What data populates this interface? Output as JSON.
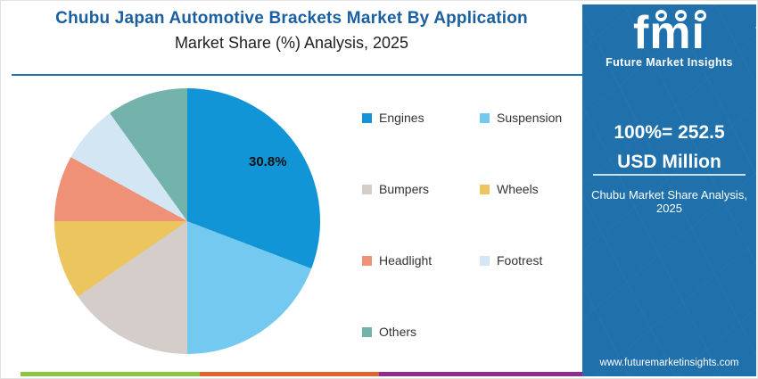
{
  "header": {
    "title": "Chubu Japan Automotive Brackets Market By Application",
    "subtitle": "Market Share (%) Analysis, 2025"
  },
  "chart_data": {
    "type": "pie",
    "title": "Chubu Japan Automotive Brackets Market By Application - Market Share (%) Analysis, 2025",
    "unit": "%",
    "start_angle_deg": 0,
    "direction": "clockwise",
    "legend_position": "right",
    "segments": [
      {
        "label": "Engines",
        "value": 30.8,
        "color": "#1195d6"
      },
      {
        "label": "Suspension",
        "value": 19.2,
        "color": "#74c9f0"
      },
      {
        "label": "Bumpers",
        "value": 15.4,
        "color": "#d5cdc9"
      },
      {
        "label": "Wheels",
        "value": 9.6,
        "color": "#edc55e"
      },
      {
        "label": "Headlight",
        "value": 8.0,
        "color": "#ef9176"
      },
      {
        "label": "Footrest",
        "value": 7.1,
        "color": "#d3e6f4"
      },
      {
        "label": "Others",
        "value": 9.9,
        "color": "#74b3ab"
      }
    ],
    "data_labels": [
      {
        "segment": "Engines",
        "text": "30.8%"
      }
    ]
  },
  "side_panel": {
    "background_color": "#1f70ab",
    "logo": {
      "brand": "fmi",
      "tagline": "Future Market Insights"
    },
    "headline": "100%= 252.5 USD Million",
    "caption": "Chubu Market Share Analysis, 2025",
    "website": "www.futuremarketinsights.com"
  },
  "colors": {
    "title_text": "#1a5f9f",
    "title_divider": "#1d72b2",
    "bottom_bar": [
      "#8cc63f",
      "#e2622b",
      "#8f2b8f"
    ]
  }
}
